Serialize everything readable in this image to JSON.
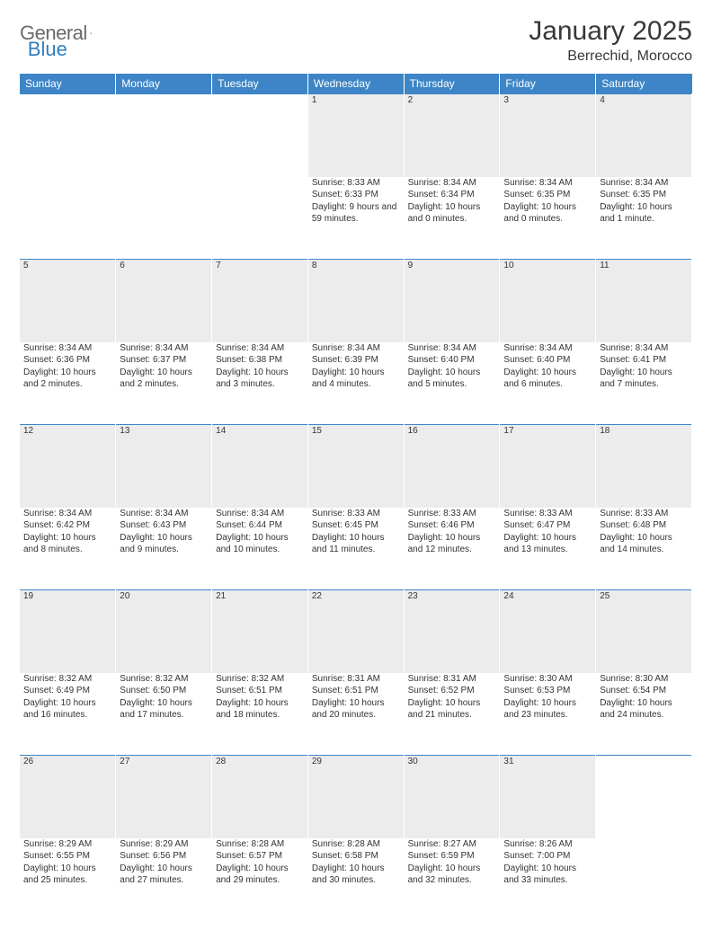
{
  "brand": {
    "text1": "General",
    "text2": "Blue"
  },
  "title": {
    "month": "January 2025",
    "location": "Berrechid, Morocco"
  },
  "colors": {
    "header_bg": "#3d85c6",
    "header_text": "#ffffff",
    "daynum_bg": "#ececec",
    "row_border": "#3d85c6",
    "body_text": "#333333",
    "logo_gray": "#6a6a6a",
    "logo_blue": "#2f7ec0"
  },
  "weekdays": [
    "Sunday",
    "Monday",
    "Tuesday",
    "Wednesday",
    "Thursday",
    "Friday",
    "Saturday"
  ],
  "layout": {
    "first_weekday_index": 3,
    "days_in_month": 31
  },
  "days": {
    "1": {
      "sunrise": "8:33 AM",
      "sunset": "6:33 PM",
      "daylight": "9 hours and 59 minutes."
    },
    "2": {
      "sunrise": "8:34 AM",
      "sunset": "6:34 PM",
      "daylight": "10 hours and 0 minutes."
    },
    "3": {
      "sunrise": "8:34 AM",
      "sunset": "6:35 PM",
      "daylight": "10 hours and 0 minutes."
    },
    "4": {
      "sunrise": "8:34 AM",
      "sunset": "6:35 PM",
      "daylight": "10 hours and 1 minute."
    },
    "5": {
      "sunrise": "8:34 AM",
      "sunset": "6:36 PM",
      "daylight": "10 hours and 2 minutes."
    },
    "6": {
      "sunrise": "8:34 AM",
      "sunset": "6:37 PM",
      "daylight": "10 hours and 2 minutes."
    },
    "7": {
      "sunrise": "8:34 AM",
      "sunset": "6:38 PM",
      "daylight": "10 hours and 3 minutes."
    },
    "8": {
      "sunrise": "8:34 AM",
      "sunset": "6:39 PM",
      "daylight": "10 hours and 4 minutes."
    },
    "9": {
      "sunrise": "8:34 AM",
      "sunset": "6:40 PM",
      "daylight": "10 hours and 5 minutes."
    },
    "10": {
      "sunrise": "8:34 AM",
      "sunset": "6:40 PM",
      "daylight": "10 hours and 6 minutes."
    },
    "11": {
      "sunrise": "8:34 AM",
      "sunset": "6:41 PM",
      "daylight": "10 hours and 7 minutes."
    },
    "12": {
      "sunrise": "8:34 AM",
      "sunset": "6:42 PM",
      "daylight": "10 hours and 8 minutes."
    },
    "13": {
      "sunrise": "8:34 AM",
      "sunset": "6:43 PM",
      "daylight": "10 hours and 9 minutes."
    },
    "14": {
      "sunrise": "8:34 AM",
      "sunset": "6:44 PM",
      "daylight": "10 hours and 10 minutes."
    },
    "15": {
      "sunrise": "8:33 AM",
      "sunset": "6:45 PM",
      "daylight": "10 hours and 11 minutes."
    },
    "16": {
      "sunrise": "8:33 AM",
      "sunset": "6:46 PM",
      "daylight": "10 hours and 12 minutes."
    },
    "17": {
      "sunrise": "8:33 AM",
      "sunset": "6:47 PM",
      "daylight": "10 hours and 13 minutes."
    },
    "18": {
      "sunrise": "8:33 AM",
      "sunset": "6:48 PM",
      "daylight": "10 hours and 14 minutes."
    },
    "19": {
      "sunrise": "8:32 AM",
      "sunset": "6:49 PM",
      "daylight": "10 hours and 16 minutes."
    },
    "20": {
      "sunrise": "8:32 AM",
      "sunset": "6:50 PM",
      "daylight": "10 hours and 17 minutes."
    },
    "21": {
      "sunrise": "8:32 AM",
      "sunset": "6:51 PM",
      "daylight": "10 hours and 18 minutes."
    },
    "22": {
      "sunrise": "8:31 AM",
      "sunset": "6:51 PM",
      "daylight": "10 hours and 20 minutes."
    },
    "23": {
      "sunrise": "8:31 AM",
      "sunset": "6:52 PM",
      "daylight": "10 hours and 21 minutes."
    },
    "24": {
      "sunrise": "8:30 AM",
      "sunset": "6:53 PM",
      "daylight": "10 hours and 23 minutes."
    },
    "25": {
      "sunrise": "8:30 AM",
      "sunset": "6:54 PM",
      "daylight": "10 hours and 24 minutes."
    },
    "26": {
      "sunrise": "8:29 AM",
      "sunset": "6:55 PM",
      "daylight": "10 hours and 25 minutes."
    },
    "27": {
      "sunrise": "8:29 AM",
      "sunset": "6:56 PM",
      "daylight": "10 hours and 27 minutes."
    },
    "28": {
      "sunrise": "8:28 AM",
      "sunset": "6:57 PM",
      "daylight": "10 hours and 29 minutes."
    },
    "29": {
      "sunrise": "8:28 AM",
      "sunset": "6:58 PM",
      "daylight": "10 hours and 30 minutes."
    },
    "30": {
      "sunrise": "8:27 AM",
      "sunset": "6:59 PM",
      "daylight": "10 hours and 32 minutes."
    },
    "31": {
      "sunrise": "8:26 AM",
      "sunset": "7:00 PM",
      "daylight": "10 hours and 33 minutes."
    }
  },
  "labels": {
    "sunrise": "Sunrise: ",
    "sunset": "Sunset: ",
    "daylight": "Daylight: "
  }
}
